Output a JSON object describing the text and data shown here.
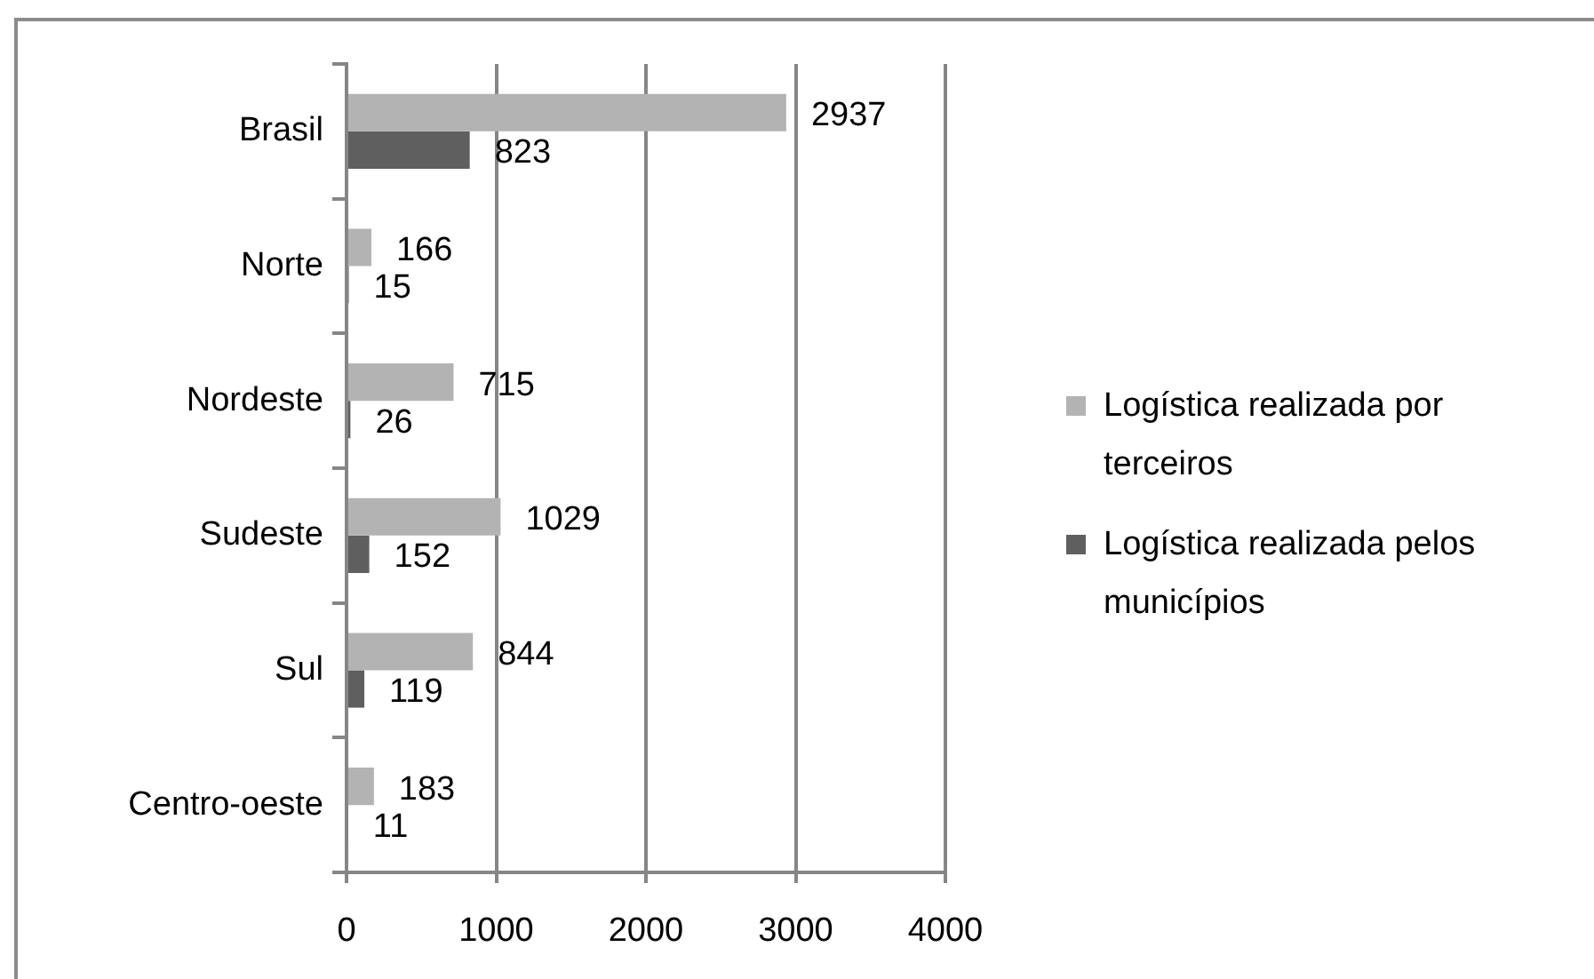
{
  "chart_data": {
    "type": "bar",
    "orientation": "horizontal",
    "categories": [
      "Brasil",
      "Norte",
      "Nordeste",
      "Sudeste",
      "Sul",
      "Centro-oeste"
    ],
    "series": [
      {
        "name": "Logística realizada por terceiros",
        "color": "#b3b3b3",
        "values": [
          2937,
          166,
          715,
          1029,
          844,
          183
        ]
      },
      {
        "name": "Logística realizada pelos municípios",
        "color": "#5f5f5f",
        "values": [
          823,
          15,
          26,
          152,
          119,
          11
        ]
      }
    ],
    "xlim": [
      0,
      4000
    ],
    "xticks": [
      0,
      1000,
      2000,
      3000,
      4000
    ],
    "grid": "x",
    "legend": "right",
    "data_labels": true
  }
}
